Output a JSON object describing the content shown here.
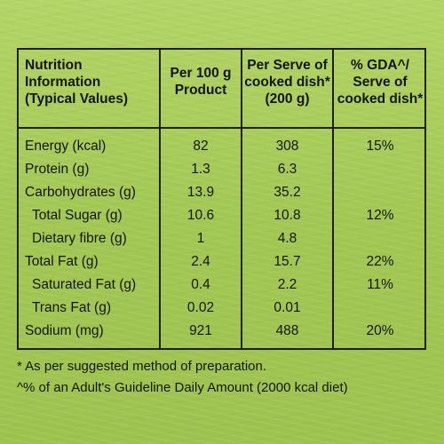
{
  "header": {
    "col1": [
      "Nutrition",
      "Information",
      "(Typical Values)"
    ],
    "col2": [
      "Per 100 g",
      "Product"
    ],
    "col3": [
      "Per Serve of",
      "cooked dish*",
      "(200 g)"
    ],
    "col4": [
      "% GDA^/",
      "Serve of",
      "cooked dish*"
    ]
  },
  "rows": [
    {
      "name": "Energy (kcal)",
      "per100": "82",
      "perServe": "308",
      "gda": "15%"
    },
    {
      "name": "Protein (g)",
      "per100": "1.3",
      "perServe": "6.3",
      "gda": ""
    },
    {
      "name": "Carbohydrates (g)",
      "per100": "13.9",
      "perServe": "35.2",
      "gda": ""
    },
    {
      "name": "Total Sugar (g)",
      "per100": "10.6",
      "perServe": "10.8",
      "gda": "12%"
    },
    {
      "name": "Dietary fibre (g)",
      "per100": "1",
      "perServe": "4.8",
      "gda": ""
    },
    {
      "name": "Total Fat (g)",
      "per100": "2.4",
      "perServe": "15.7",
      "gda": "22%"
    },
    {
      "name": "Saturated Fat (g)",
      "per100": "0.4",
      "perServe": "2.2",
      "gda": "11%"
    },
    {
      "name": "Trans Fat (g)",
      "per100": "0.02",
      "perServe": "0.01",
      "gda": ""
    },
    {
      "name": "Sodium (mg)",
      "per100": "921",
      "perServe": "488",
      "gda": "20%"
    }
  ],
  "footnotes": [
    "* As per suggested method of preparation.",
    "^% of an Adult's Guideline Daily Amount (2000 kcal diet)"
  ]
}
